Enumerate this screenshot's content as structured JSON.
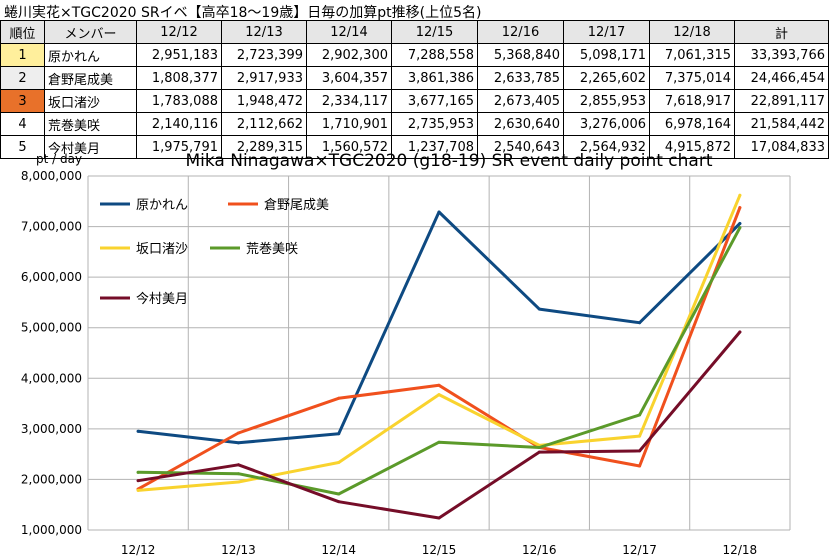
{
  "header": {
    "title": "蜷川実花×TGC2020  SRイベ【高卒18～19歳】日毎の加算pt推移(上位5名)"
  },
  "table": {
    "columns": [
      "順位",
      "メンバー",
      "12/12",
      "12/13",
      "12/14",
      "12/15",
      "12/16",
      "12/17",
      "12/18",
      "計"
    ],
    "rows": [
      {
        "rank": "1",
        "rank_color": "#ffef9c",
        "name": "原かれん",
        "values": [
          "2,951,183",
          "2,723,399",
          "2,902,300",
          "7,288,558",
          "5,368,840",
          "5,098,171",
          "7,061,315"
        ],
        "total": "33,393,766"
      },
      {
        "rank": "2",
        "rank_color": "#eeeeee",
        "name": "倉野尾成美",
        "values": [
          "1,808,377",
          "2,917,933",
          "3,604,357",
          "3,861,386",
          "2,633,785",
          "2,265,602",
          "7,375,014"
        ],
        "total": "24,466,454"
      },
      {
        "rank": "3",
        "rank_color": "#e8712a",
        "name": "坂口渚沙",
        "values": [
          "1,783,088",
          "1,948,472",
          "2,334,117",
          "3,677,165",
          "2,673,405",
          "2,855,953",
          "7,618,917"
        ],
        "total": "22,891,117"
      },
      {
        "rank": "4",
        "rank_color": "#ffffff",
        "name": "荒巻美咲",
        "values": [
          "2,140,116",
          "2,112,662",
          "1,710,901",
          "2,735,953",
          "2,630,640",
          "3,276,006",
          "6,978,164"
        ],
        "total": "21,584,442"
      },
      {
        "rank": "5",
        "rank_color": "#ffffff",
        "name": "今村美月",
        "values": [
          "1,975,791",
          "2,289,315",
          "1,560,572",
          "1,237,708",
          "2,540,643",
          "2,564,932",
          "4,915,872"
        ],
        "total": "17,084,833"
      }
    ]
  },
  "chart_data": {
    "type": "line",
    "title": "Mika Ninagawa×TGC2020 (g18-19) SR event daily point chart",
    "ylabel": "pt / day",
    "xlabel": "",
    "categories": [
      "12/12",
      "12/13",
      "12/14",
      "12/15",
      "12/16",
      "12/17",
      "12/18"
    ],
    "ylim": [
      1000000,
      8000000
    ],
    "yticks": [
      1000000,
      2000000,
      3000000,
      4000000,
      5000000,
      6000000,
      7000000,
      8000000
    ],
    "ytick_labels": [
      "1,000,000",
      "2,000,000",
      "3,000,000",
      "4,000,000",
      "5,000,000",
      "6,000,000",
      "7,000,000",
      "8,000,000"
    ],
    "grid": true,
    "legend_position": "inside-top-left",
    "series": [
      {
        "name": "原かれん",
        "color": "#0e4a82",
        "values": [
          2951183,
          2723399,
          2902300,
          7288558,
          5368840,
          5098171,
          7061315
        ]
      },
      {
        "name": "倉野尾成美",
        "color": "#f0501d",
        "values": [
          1808377,
          2917933,
          3604357,
          3861386,
          2633785,
          2265602,
          7375014
        ]
      },
      {
        "name": "坂口渚沙",
        "color": "#f9d32e",
        "values": [
          1783088,
          1948472,
          2334117,
          3677165,
          2673405,
          2855953,
          7618917
        ]
      },
      {
        "name": "荒巻美咲",
        "color": "#5b9a2a",
        "values": [
          2140116,
          2112662,
          1710901,
          2735953,
          2630640,
          3276006,
          6978164
        ]
      },
      {
        "name": "今村美月",
        "color": "#750d28",
        "values": [
          1975791,
          2289315,
          1560572,
          1237708,
          2540643,
          2564932,
          4915872
        ]
      }
    ]
  }
}
